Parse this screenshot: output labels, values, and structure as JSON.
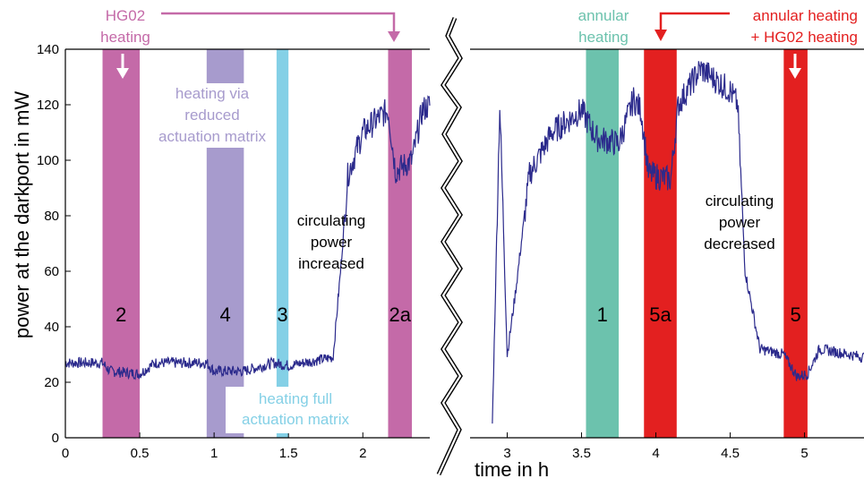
{
  "colors": {
    "trace": "#2b2a8c",
    "hg02": "#c46aa8",
    "reduced": "#a79bcd",
    "full": "#84d0e6",
    "annular": "#6cc2ad",
    "combined": "#e32020",
    "axis": "#000000"
  },
  "chart_data": {
    "type": "line",
    "ylabel": "power at the darkport in mW",
    "xlabel": "time in h",
    "ylim": [
      0,
      140
    ],
    "yticks": [
      "0",
      "20",
      "40",
      "60",
      "80",
      "100",
      "120",
      "140"
    ],
    "left_panel": {
      "xlim": [
        0,
        2.45
      ],
      "xticks": [
        "0",
        "0.5",
        "1",
        "1.5",
        "2"
      ],
      "bands": [
        {
          "label": "2",
          "x0": 0.25,
          "x1": 0.5,
          "color": "hg02"
        },
        {
          "label": "4",
          "x0": 0.95,
          "x1": 1.2,
          "color": "reduced"
        },
        {
          "label": "3",
          "x0": 1.42,
          "x1": 1.5,
          "color": "full"
        },
        {
          "label": "2a",
          "x0": 2.17,
          "x1": 2.33,
          "color": "hg02"
        }
      ],
      "series": [
        {
          "x": [
            0,
            0.25,
            0.3,
            0.5,
            0.6,
            0.95,
            1.0,
            1.2,
            1.4,
            1.5,
            1.7,
            1.8,
            1.85,
            1.9,
            2.0,
            2.1,
            2.17,
            2.22,
            2.33,
            2.4,
            2.45
          ],
          "y": [
            27,
            27,
            24,
            23,
            27,
            27,
            24,
            24,
            27,
            26,
            28,
            29,
            60,
            95,
            110,
            115,
            118,
            96,
            100,
            118,
            120
          ]
        }
      ]
    },
    "right_panel": {
      "xlim": [
        2.75,
        5.4
      ],
      "xticks": [
        "3",
        "3.5",
        "4",
        "4.5",
        "5"
      ],
      "bands": [
        {
          "label": "1",
          "x0": 3.53,
          "x1": 3.75,
          "color": "annular"
        },
        {
          "label": "5a",
          "x0": 3.92,
          "x1": 4.14,
          "color": "combined"
        },
        {
          "label": "5",
          "x0": 4.86,
          "x1": 5.02,
          "color": "combined"
        }
      ],
      "series": [
        {
          "x": [
            2.9,
            2.95,
            3.0,
            3.05,
            3.15,
            3.3,
            3.5,
            3.6,
            3.75,
            3.85,
            3.9,
            3.95,
            4.1,
            4.15,
            4.3,
            4.5,
            4.55,
            4.6,
            4.7,
            4.86,
            4.95,
            5.02,
            5.1,
            5.4
          ],
          "y": [
            5,
            120,
            30,
            50,
            95,
            110,
            118,
            108,
            106,
            122,
            118,
            95,
            93,
            120,
            133,
            125,
            120,
            60,
            32,
            30,
            22,
            23,
            32,
            29
          ]
        }
      ]
    },
    "band_annotations": {
      "hg02": [
        "HG02",
        "heating"
      ],
      "reduced": [
        "heating via",
        "reduced",
        "actuation matrix"
      ],
      "full": [
        "heating full",
        "actuation matrix"
      ],
      "annular": [
        "annular",
        "heating"
      ],
      "combined": [
        "annular heating",
        "+ HG02 heating"
      ]
    },
    "text_annotations": {
      "increased": [
        "circulating",
        "power",
        "increased"
      ],
      "decreased": [
        "circulating",
        "power",
        "decreased"
      ]
    }
  }
}
